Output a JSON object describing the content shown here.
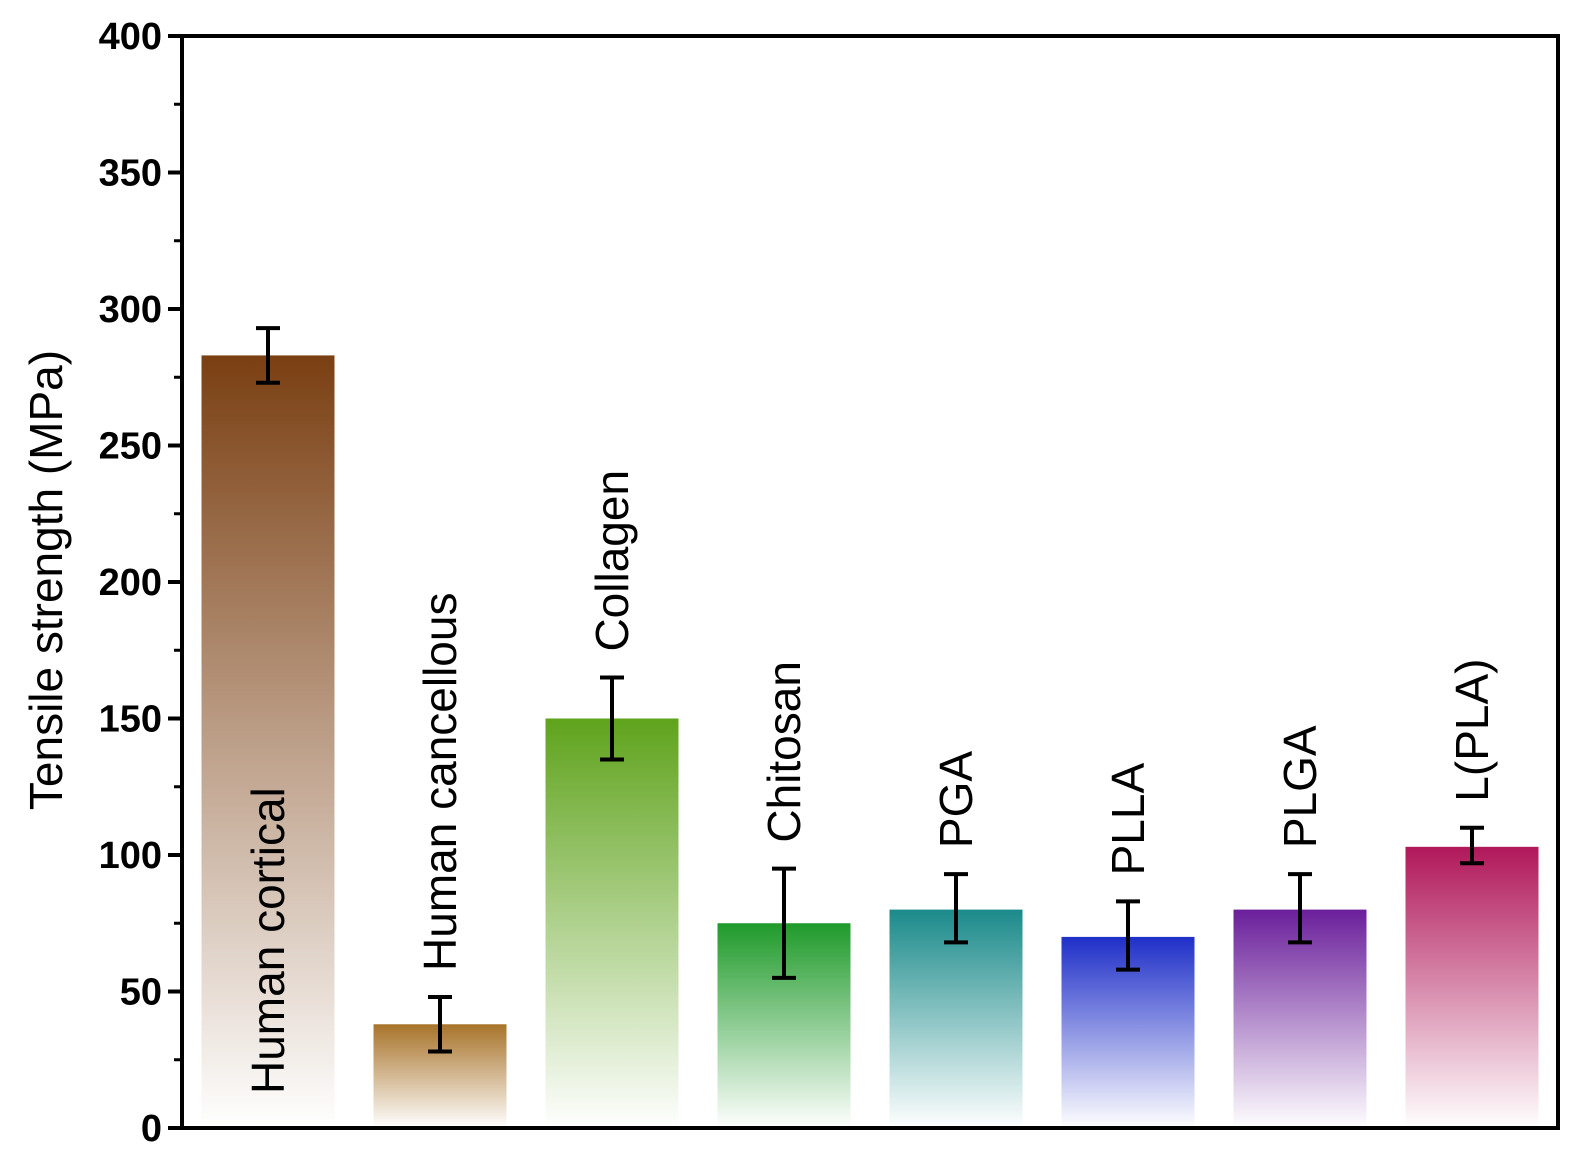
{
  "chart_data": {
    "type": "bar",
    "title": "",
    "xlabel": "",
    "ylabel": "Tensile strength (MPa)",
    "ylim": [
      0,
      400
    ],
    "yticks": [
      0,
      50,
      100,
      150,
      200,
      250,
      300,
      350,
      400
    ],
    "grid": false,
    "legend": "none",
    "categories": [
      "Human cortical",
      "Human cancellous",
      "Collagen",
      "Chitosan",
      "PGA",
      "PLLA",
      "PLGA",
      "L(PLA)"
    ],
    "values": [
      283,
      38,
      150,
      75,
      80,
      70,
      80,
      103
    ],
    "error_low": [
      273,
      28,
      135,
      55,
      68,
      58,
      68,
      97
    ],
    "error_high": [
      293,
      48,
      165,
      95,
      93,
      83,
      93,
      110
    ],
    "label_position": [
      "inside",
      "above",
      "above",
      "above",
      "above",
      "above",
      "above",
      "above"
    ],
    "colors": [
      "#7a3f12",
      "#a8732a",
      "#5fa31c",
      "#1f9a2a",
      "#1b8a8a",
      "#1f2fc8",
      "#6a1f9a",
      "#b0185a"
    ]
  }
}
